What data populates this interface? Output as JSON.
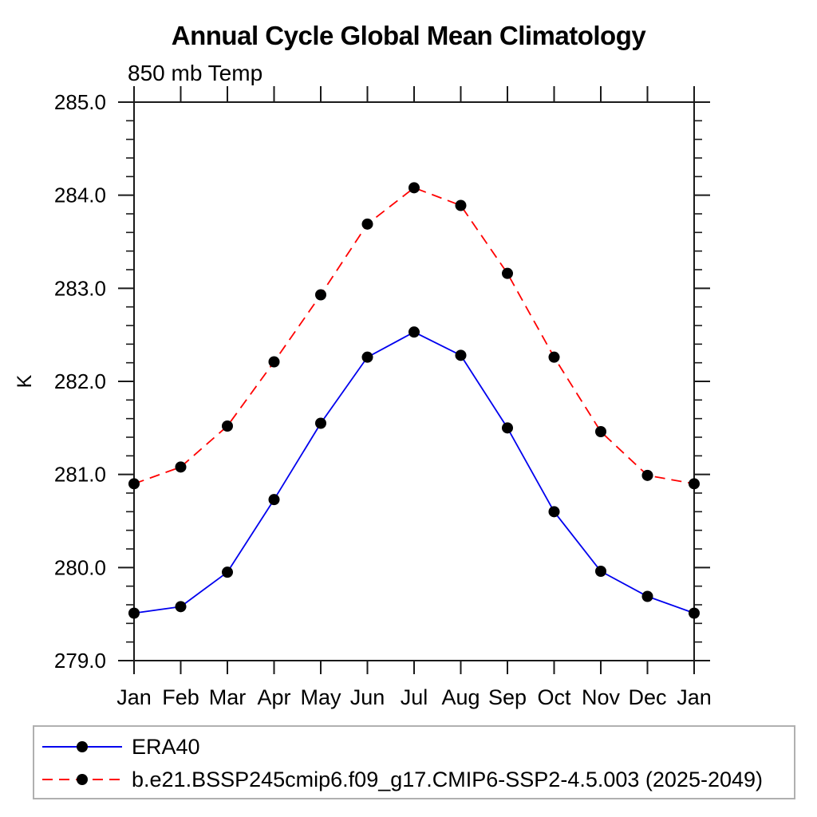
{
  "chart_data": {
    "type": "line",
    "title": "Annual Cycle Global Mean Climatology",
    "subtitle": "850 mb Temp",
    "ylabel": "K",
    "xlabel": "",
    "categories": [
      "Jan",
      "Feb",
      "Mar",
      "Apr",
      "May",
      "Jun",
      "Jul",
      "Aug",
      "Sep",
      "Oct",
      "Nov",
      "Dec",
      "Jan"
    ],
    "ylim": [
      279.0,
      285.0
    ],
    "yticks_major": [
      279.0,
      280.0,
      281.0,
      282.0,
      283.0,
      284.0,
      285.0
    ],
    "ytick_labels": [
      "279.0",
      "280.0",
      "281.0",
      "282.0",
      "283.0",
      "284.0",
      "285.0"
    ],
    "ytick_minor_step": 0.2,
    "grid": "off",
    "legend_position": "bottom-left-box",
    "axis_color": "#1a1a1a",
    "marker_color": "#000000",
    "marker_radius": 7,
    "series": [
      {
        "name": "ERA40",
        "color": "#0000ee",
        "style": "solid",
        "marker": "filled-circle",
        "values": [
          279.51,
          279.58,
          279.95,
          280.73,
          281.55,
          282.26,
          282.53,
          282.28,
          281.5,
          280.6,
          279.96,
          279.69,
          279.51
        ]
      },
      {
        "name": "b.e21.BSSP245cmip6.f09_g17.CMIP6-SSP2-4.5.003 (2025-2049)",
        "color": "#ff0000",
        "style": "dashed",
        "marker": "filled-circle",
        "values": [
          280.9,
          281.08,
          281.52,
          282.21,
          282.93,
          283.69,
          284.08,
          283.89,
          283.16,
          282.26,
          281.46,
          280.99,
          280.9
        ]
      }
    ],
    "legend_border_color": "#b0b0b0"
  }
}
